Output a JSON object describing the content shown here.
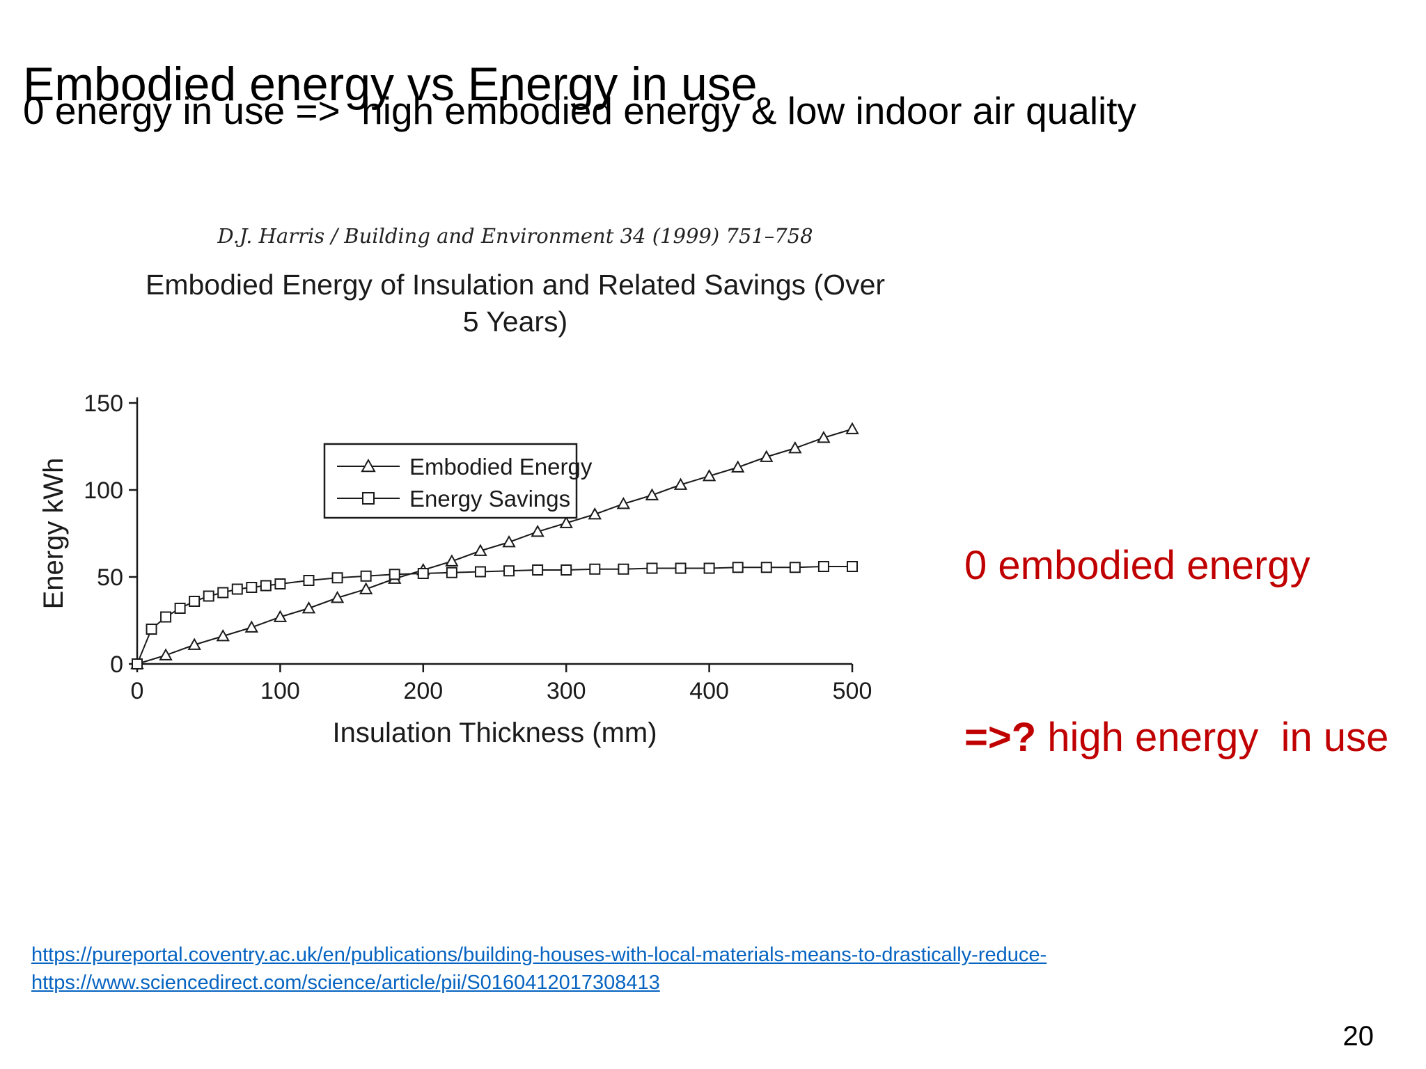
{
  "slide": {
    "title": "Embodied energy vs Energy in use",
    "subtitle": "0 energy in use =>  high embodied energy & low indoor air quality",
    "page_number": "20"
  },
  "figure": {
    "citation": "D.J. Harris / Building and Environment 34 (1999) 751–758",
    "title_line1": "Embodied Energy of Insulation and Related Savings (Over",
    "title_line2": "5 Years)"
  },
  "annotation": {
    "line1": "0 embodied energy",
    "line2_bold": "=>?",
    "line2_rest": " high energy  in use",
    "color": "#c00000"
  },
  "links": [
    "https://pureportal.coventry.ac.uk/en/publications/building-houses-with-local-materials-means-to-drastically-reduce-",
    "https://www.sciencedirect.com/science/article/pii/S0160412017308413"
  ],
  "chart_data": {
    "type": "line",
    "title": "Embodied Energy of Insulation and Related Savings (Over 5 Years)",
    "xlabel": "Insulation Thickness (mm)",
    "ylabel": "Energy kWh",
    "xlim": [
      0,
      500
    ],
    "ylim": [
      0,
      150
    ],
    "x_ticks": [
      0,
      100,
      200,
      300,
      400,
      500
    ],
    "y_ticks": [
      0,
      50,
      100,
      150
    ],
    "grid": false,
    "legend_position": "upper-left-inside",
    "ink_color": "#1a1a1a",
    "series": [
      {
        "name": "Embodied Energy",
        "marker": "triangle",
        "x": [
          0,
          20,
          40,
          60,
          80,
          100,
          120,
          140,
          160,
          180,
          200,
          220,
          240,
          260,
          280,
          300,
          320,
          340,
          360,
          380,
          400,
          420,
          440,
          460,
          480,
          500
        ],
        "y": [
          0,
          5,
          11,
          16,
          21,
          27,
          32,
          38,
          43,
          49,
          54,
          59,
          65,
          70,
          76,
          81,
          86,
          92,
          97,
          103,
          108,
          113,
          119,
          124,
          130,
          135
        ]
      },
      {
        "name": "Energy Savings",
        "marker": "square",
        "x": [
          0,
          10,
          20,
          30,
          40,
          50,
          60,
          70,
          80,
          90,
          100,
          120,
          140,
          160,
          180,
          200,
          220,
          240,
          260,
          280,
          300,
          320,
          340,
          360,
          380,
          400,
          420,
          440,
          460,
          480,
          500
        ],
        "y": [
          0,
          20,
          27,
          32,
          36,
          39,
          41,
          43,
          44,
          45,
          46,
          48,
          49.5,
          50.5,
          51.5,
          52,
          52.5,
          53,
          53.5,
          54,
          54,
          54.5,
          54.5,
          55,
          55,
          55,
          55.5,
          55.5,
          55.5,
          56,
          56
        ]
      }
    ]
  }
}
